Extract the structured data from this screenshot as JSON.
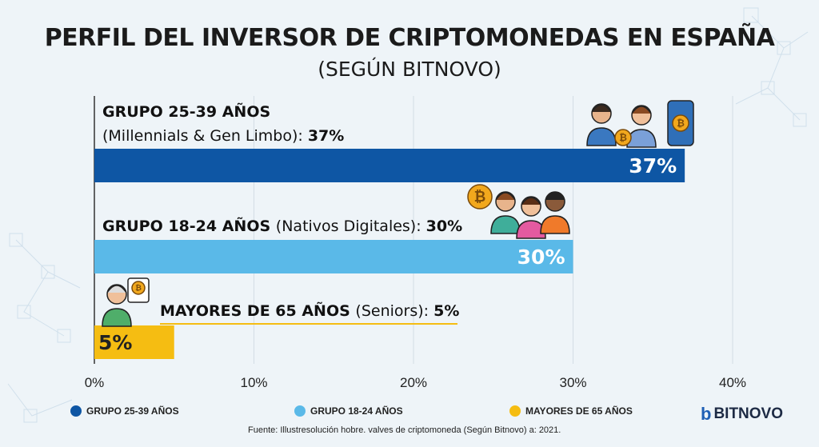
{
  "title": "PERFIL DEL INVERSOR DE CRIPTOMONEDAS EN ESPAÑA",
  "subtitle": "(SEGÚN BITNOVO)",
  "chart_data": {
    "type": "bar",
    "orientation": "horizontal",
    "xlim": [
      0,
      40
    ],
    "xticks": [
      "0%",
      "10%",
      "20%",
      "30%",
      "40%"
    ],
    "xtick_values": [
      0,
      10,
      20,
      30,
      40
    ],
    "grid": true,
    "legend_placement": "bottom",
    "series": [
      {
        "name": "GRUPO 25-39 AÑOS",
        "label_bold": "GRUPO 25-39 AÑOS",
        "label_rest": "(Millennials & Gen Limbo):",
        "label_value": "37%",
        "value": 37,
        "data_label": "37%",
        "color": "#0e56a4"
      },
      {
        "name": "GRUPO 18-24 AÑOS",
        "label_bold": "GRUPO 18-24 AÑOS",
        "label_rest": "(Nativos Digitales):",
        "label_value": "30%",
        "value": 30,
        "data_label": "30%",
        "color": "#5ab9e8"
      },
      {
        "name": "MAYORES DE 65 AÑOS",
        "label_bold": "MAYORES DE 65 AÑOS",
        "label_rest": "(Seniors):",
        "label_value": "5%",
        "value": 5,
        "data_label": "5%",
        "color": "#f5bd12"
      }
    ]
  },
  "source": "Fuente: Illustresolución hobre. valves de criptomoneda (Según Bitnovo) a: 2021.",
  "logo": {
    "text": "BITNOVO",
    "mark": "b"
  }
}
